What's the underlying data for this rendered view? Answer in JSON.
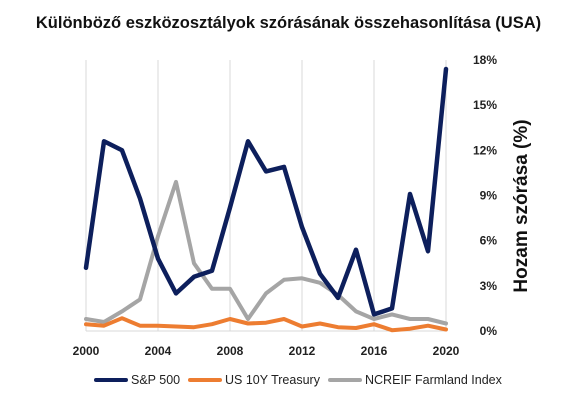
{
  "chart_data": {
    "type": "line",
    "title": "Különböző eszközosztályok szórásának összehasonlítása (USA)",
    "xlabel": "",
    "ylabel": "Hozam szórása (%)",
    "x": [
      2000,
      2001,
      2002,
      2003,
      2004,
      2005,
      2006,
      2007,
      2008,
      2009,
      2010,
      2011,
      2012,
      2013,
      2014,
      2015,
      2016,
      2017,
      2018,
      2019,
      2020
    ],
    "x_ticks": [
      "2000",
      "2004",
      "2008",
      "2012",
      "2016",
      "2020"
    ],
    "y_ticks": [
      "0%",
      "3%",
      "6%",
      "9%",
      "12%",
      "15%",
      "18%"
    ],
    "ylim": [
      0,
      18
    ],
    "y_axis_position": "right",
    "grid": "vertical",
    "legend_position": "bottom",
    "series": [
      {
        "name": "S&P 500",
        "color": "#0d1f5c",
        "values": [
          4.2,
          12.6,
          12.0,
          8.8,
          4.8,
          2.5,
          3.6,
          4.0,
          8.2,
          12.6,
          10.6,
          10.9,
          6.9,
          3.8,
          2.2,
          5.4,
          1.1,
          1.5,
          9.1,
          5.3,
          17.4
        ]
      },
      {
        "name": "US 10Y Treasury",
        "color": "#ed7d31",
        "values": [
          0.45,
          0.35,
          0.85,
          0.35,
          0.35,
          0.3,
          0.25,
          0.45,
          0.8,
          0.5,
          0.55,
          0.8,
          0.3,
          0.5,
          0.25,
          0.2,
          0.45,
          0.05,
          0.15,
          0.35,
          0.1
        ]
      },
      {
        "name": "NCREIF Farmland Index",
        "color": "#a5a5a5",
        "values": [
          0.8,
          0.6,
          1.3,
          2.1,
          6.3,
          9.9,
          4.5,
          2.8,
          2.8,
          0.8,
          2.5,
          3.4,
          3.5,
          3.2,
          2.4,
          1.3,
          0.8,
          1.1,
          0.8,
          0.8,
          0.5
        ]
      }
    ]
  }
}
